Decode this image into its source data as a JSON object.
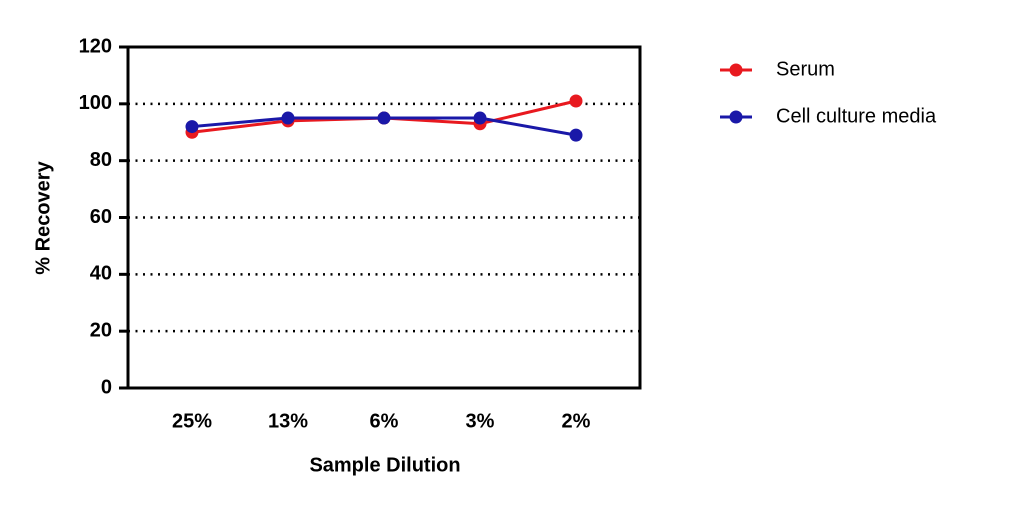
{
  "chart_data": {
    "type": "line",
    "x_label": "Sample Dilution",
    "y_label": "% Recovery",
    "categories": [
      "25%",
      "13%",
      "6%",
      "3%",
      "2%"
    ],
    "series": [
      {
        "name": "Serum",
        "color": "#e8191f",
        "values": [
          90,
          94,
          95,
          93,
          101
        ]
      },
      {
        "name": "Cell culture media",
        "color": "#1a18a8",
        "values": [
          92,
          95,
          95,
          95,
          89
        ]
      }
    ],
    "ylim": [
      0,
      120
    ],
    "yticks": [
      0,
      20,
      40,
      60,
      80,
      100,
      120
    ],
    "grid": true,
    "legend": "right"
  }
}
